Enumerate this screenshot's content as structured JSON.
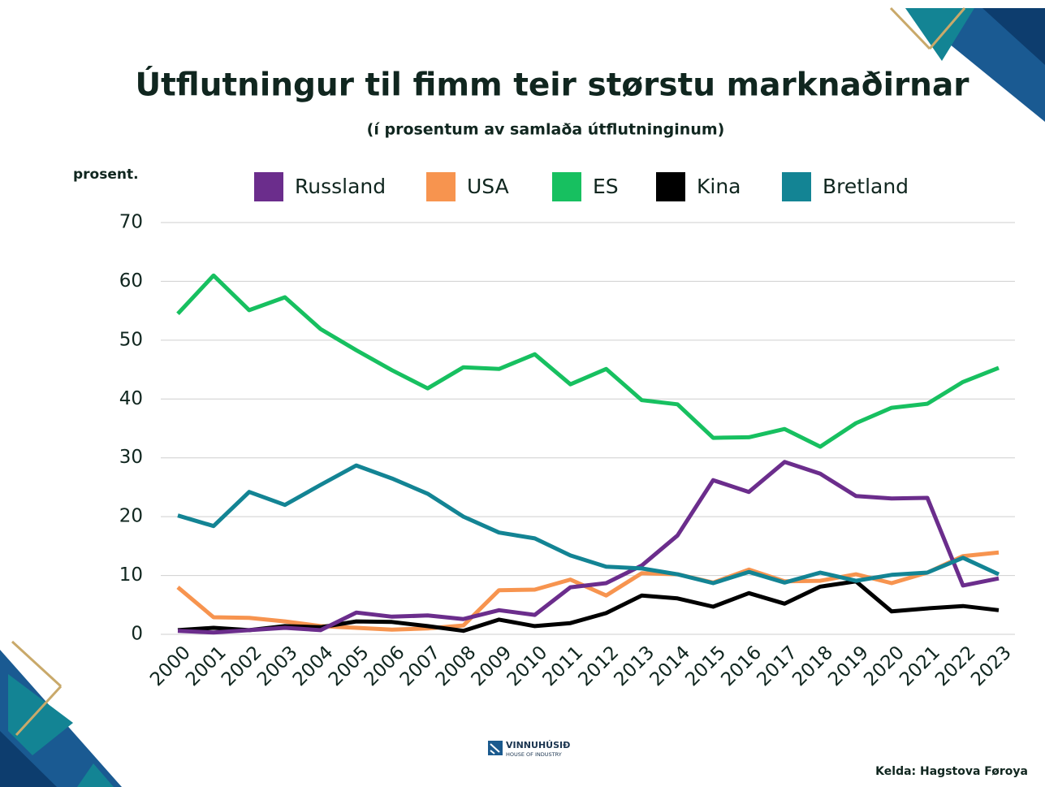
{
  "chart_data": {
    "type": "line",
    "title": "Útflutningur til fimm teir størstu marknaðirnar",
    "subtitle": "(í prosentum av samlaða útflutninginum)",
    "y_label": "prosent.",
    "categories": [
      "2000",
      "2001",
      "2002",
      "2003",
      "2004",
      "2005",
      "2006",
      "2007",
      "2008",
      "2009",
      "2010",
      "2011",
      "2012",
      "2013",
      "2014",
      "2015",
      "2016",
      "2017",
      "2018",
      "2019",
      "2020",
      "2021",
      "2022",
      "2023"
    ],
    "series": [
      {
        "name": "Russland",
        "color": "#6b2d8c",
        "values": [
          0.6,
          0.3,
          0.7,
          1.1,
          0.7,
          3.7,
          3.0,
          3.2,
          2.6,
          4.1,
          3.3,
          8.0,
          8.7,
          11.7,
          16.8,
          26.2,
          24.2,
          29.3,
          27.3,
          23.5,
          23.1,
          23.2,
          8.3,
          9.5
        ]
      },
      {
        "name": "USA",
        "color": "#f7944f",
        "values": [
          8.0,
          2.9,
          2.8,
          2.2,
          1.4,
          1.1,
          0.8,
          1.0,
          1.5,
          7.5,
          7.6,
          9.3,
          6.6,
          10.4,
          10.2,
          8.8,
          11.0,
          9.0,
          9.1,
          10.2,
          8.7,
          10.5,
          13.3,
          13.9
        ]
      },
      {
        "name": "ES",
        "color": "#17c060",
        "values": [
          54.5,
          61.0,
          55.1,
          57.3,
          51.9,
          48.3,
          44.9,
          41.8,
          45.4,
          45.1,
          47.6,
          42.5,
          45.1,
          39.8,
          39.1,
          33.4,
          33.5,
          34.9,
          31.9,
          35.9,
          38.5,
          39.2,
          42.9,
          45.3
        ]
      },
      {
        "name": "Kina",
        "color": "#000000",
        "values": [
          0.7,
          1.1,
          0.7,
          1.4,
          1.2,
          2.2,
          2.1,
          1.4,
          0.6,
          2.5,
          1.4,
          1.9,
          3.6,
          6.6,
          6.1,
          4.7,
          7.0,
          5.2,
          8.1,
          9.0,
          3.9,
          4.4,
          4.8,
          4.1
        ]
      },
      {
        "name": "Bretland",
        "color": "#138494",
        "values": [
          20.2,
          18.4,
          24.2,
          22.0,
          25.4,
          28.7,
          26.5,
          23.9,
          20.0,
          17.3,
          16.3,
          13.4,
          11.5,
          11.2,
          10.2,
          8.7,
          10.6,
          8.8,
          10.5,
          9.1,
          10.1,
          10.5,
          13.0,
          10.2
        ]
      }
    ],
    "ylim": [
      0,
      70
    ],
    "yticks": [
      0,
      10,
      20,
      30,
      40,
      50,
      60,
      70
    ],
    "grid": true
  },
  "logo": {
    "name": "VINNUHÚSIÐ",
    "tagline": "HOUSE OF INDUSTRY"
  },
  "source": "Kelda: Hagstova Føroya"
}
